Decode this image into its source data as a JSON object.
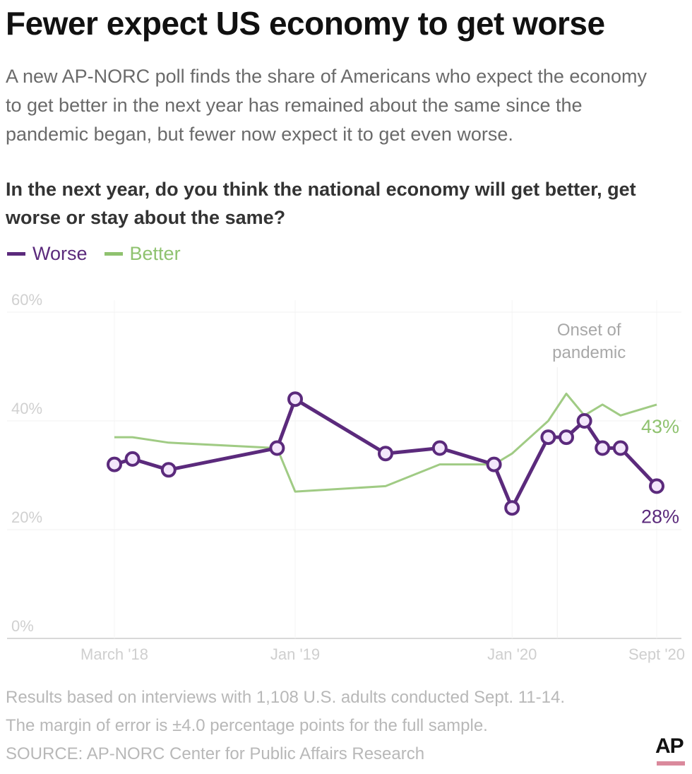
{
  "header": {
    "title": "Fewer expect US economy to get worse",
    "subtitle": "A new AP-NORC poll finds the share of Americans who expect the economy to get better in the next year has remained about the same since the pandemic began, but fewer now expect it to get even worse.",
    "question": "In the next year, do you think the national economy will get better, get worse or stay about the same?"
  },
  "legend": {
    "items": [
      {
        "label": "Worse",
        "color": "#5b2a7c"
      },
      {
        "label": "Better",
        "color": "#8fc26f"
      }
    ]
  },
  "chart_data": {
    "type": "line",
    "title": "Fewer expect US economy to get worse",
    "xlabel": "",
    "ylabel": "",
    "ylim": [
      0,
      60
    ],
    "yticks": [
      0,
      20,
      40,
      60
    ],
    "ytick_labels": [
      "0%",
      "20%",
      "40%",
      "60%"
    ],
    "xtick_labels": [
      {
        "label": "March '18",
        "month_offset": 0
      },
      {
        "label": "Jan '19",
        "month_offset": 10
      },
      {
        "label": "Jan '20",
        "month_offset": 22
      },
      {
        "label": "Sept '20",
        "month_offset": 30
      }
    ],
    "grid": true,
    "legend_position": "top-left",
    "annotations": [
      {
        "text": "Onset of pandemic",
        "month_offset": 24.5
      },
      {
        "text": "43%",
        "series": "Better",
        "month_offset": 30
      },
      {
        "text": "28%",
        "series": "Worse",
        "month_offset": 30
      }
    ],
    "series": [
      {
        "name": "Worse",
        "color": "#5b2a7c",
        "markers": true,
        "points": [
          {
            "month_offset": 0,
            "value": 32
          },
          {
            "month_offset": 1,
            "value": 33
          },
          {
            "month_offset": 3,
            "value": 31
          },
          {
            "month_offset": 9,
            "value": 35
          },
          {
            "month_offset": 10,
            "value": 44
          },
          {
            "month_offset": 15,
            "value": 34
          },
          {
            "month_offset": 18,
            "value": 35
          },
          {
            "month_offset": 21,
            "value": 32
          },
          {
            "month_offset": 22,
            "value": 24
          },
          {
            "month_offset": 24,
            "value": 37
          },
          {
            "month_offset": 25,
            "value": 37
          },
          {
            "month_offset": 26,
            "value": 40
          },
          {
            "month_offset": 27,
            "value": 35
          },
          {
            "month_offset": 28,
            "value": 35
          },
          {
            "month_offset": 30,
            "value": 28
          }
        ]
      },
      {
        "name": "Better",
        "color": "#8fc26f",
        "markers": false,
        "points": [
          {
            "month_offset": 0,
            "value": 37
          },
          {
            "month_offset": 1,
            "value": 37
          },
          {
            "month_offset": 3,
            "value": 36
          },
          {
            "month_offset": 9,
            "value": 35
          },
          {
            "month_offset": 10,
            "value": 27
          },
          {
            "month_offset": 15,
            "value": 28
          },
          {
            "month_offset": 18,
            "value": 32
          },
          {
            "month_offset": 21,
            "value": 32
          },
          {
            "month_offset": 22,
            "value": 34
          },
          {
            "month_offset": 24,
            "value": 40
          },
          {
            "month_offset": 25,
            "value": 45
          },
          {
            "month_offset": 26,
            "value": 41
          },
          {
            "month_offset": 27,
            "value": 43
          },
          {
            "month_offset": 28,
            "value": 41
          },
          {
            "month_offset": 30,
            "value": 43
          }
        ]
      }
    ]
  },
  "footer": {
    "note_line1": "Results based on interviews with 1,108 U.S. adults conducted Sept. 11-14.",
    "note_line2": "The margin of error is ±4.0 percentage points for the full sample.",
    "source": "SOURCE: AP-NORC Center for Public Affairs Research"
  },
  "logo": {
    "text": "AP"
  }
}
